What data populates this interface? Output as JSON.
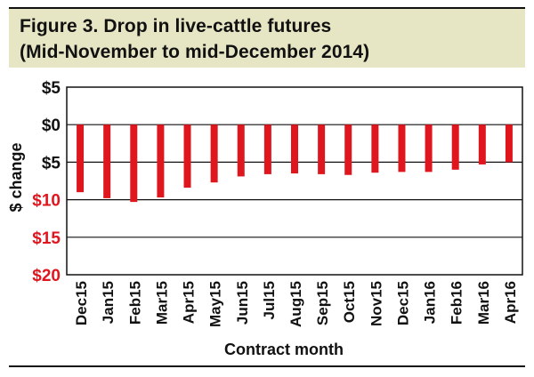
{
  "title": "Figure 3. Drop in live-cattle futures",
  "subtitle": "(Mid-November to mid-December 2014)",
  "chart_data": {
    "type": "bar",
    "xlabel": "Contract month",
    "ylabel": "$ change",
    "ylim": [
      -20,
      5
    ],
    "y_ticks": [
      {
        "value": 5,
        "label": "$5",
        "color": "#111111"
      },
      {
        "value": 0,
        "label": "$0",
        "color": "#111111"
      },
      {
        "value": -5,
        "label": "$5",
        "color": "#111111"
      },
      {
        "value": -10,
        "label": "$10",
        "color": "#e0161e"
      },
      {
        "value": -15,
        "label": "$15",
        "color": "#e0161e"
      },
      {
        "value": -20,
        "label": "$20",
        "color": "#e0161e"
      }
    ],
    "grid": true,
    "categories": [
      "Dec15",
      "Jan15",
      "Feb15",
      "Mar15",
      "Apr15",
      "May15",
      "Jun15",
      "Jul15",
      "Aug15",
      "Sep15",
      "Oct15",
      "Nov15",
      "Dec15",
      "Jan16",
      "Feb16",
      "Mar16",
      "Apr16"
    ],
    "values": [
      -9.0,
      -9.8,
      -10.3,
      -9.7,
      -8.4,
      -7.7,
      -6.9,
      -6.6,
      -6.5,
      -6.6,
      -6.7,
      -6.4,
      -6.3,
      -6.3,
      -6.0,
      -5.3,
      -5.0
    ],
    "bar_color": "#e0161e"
  }
}
